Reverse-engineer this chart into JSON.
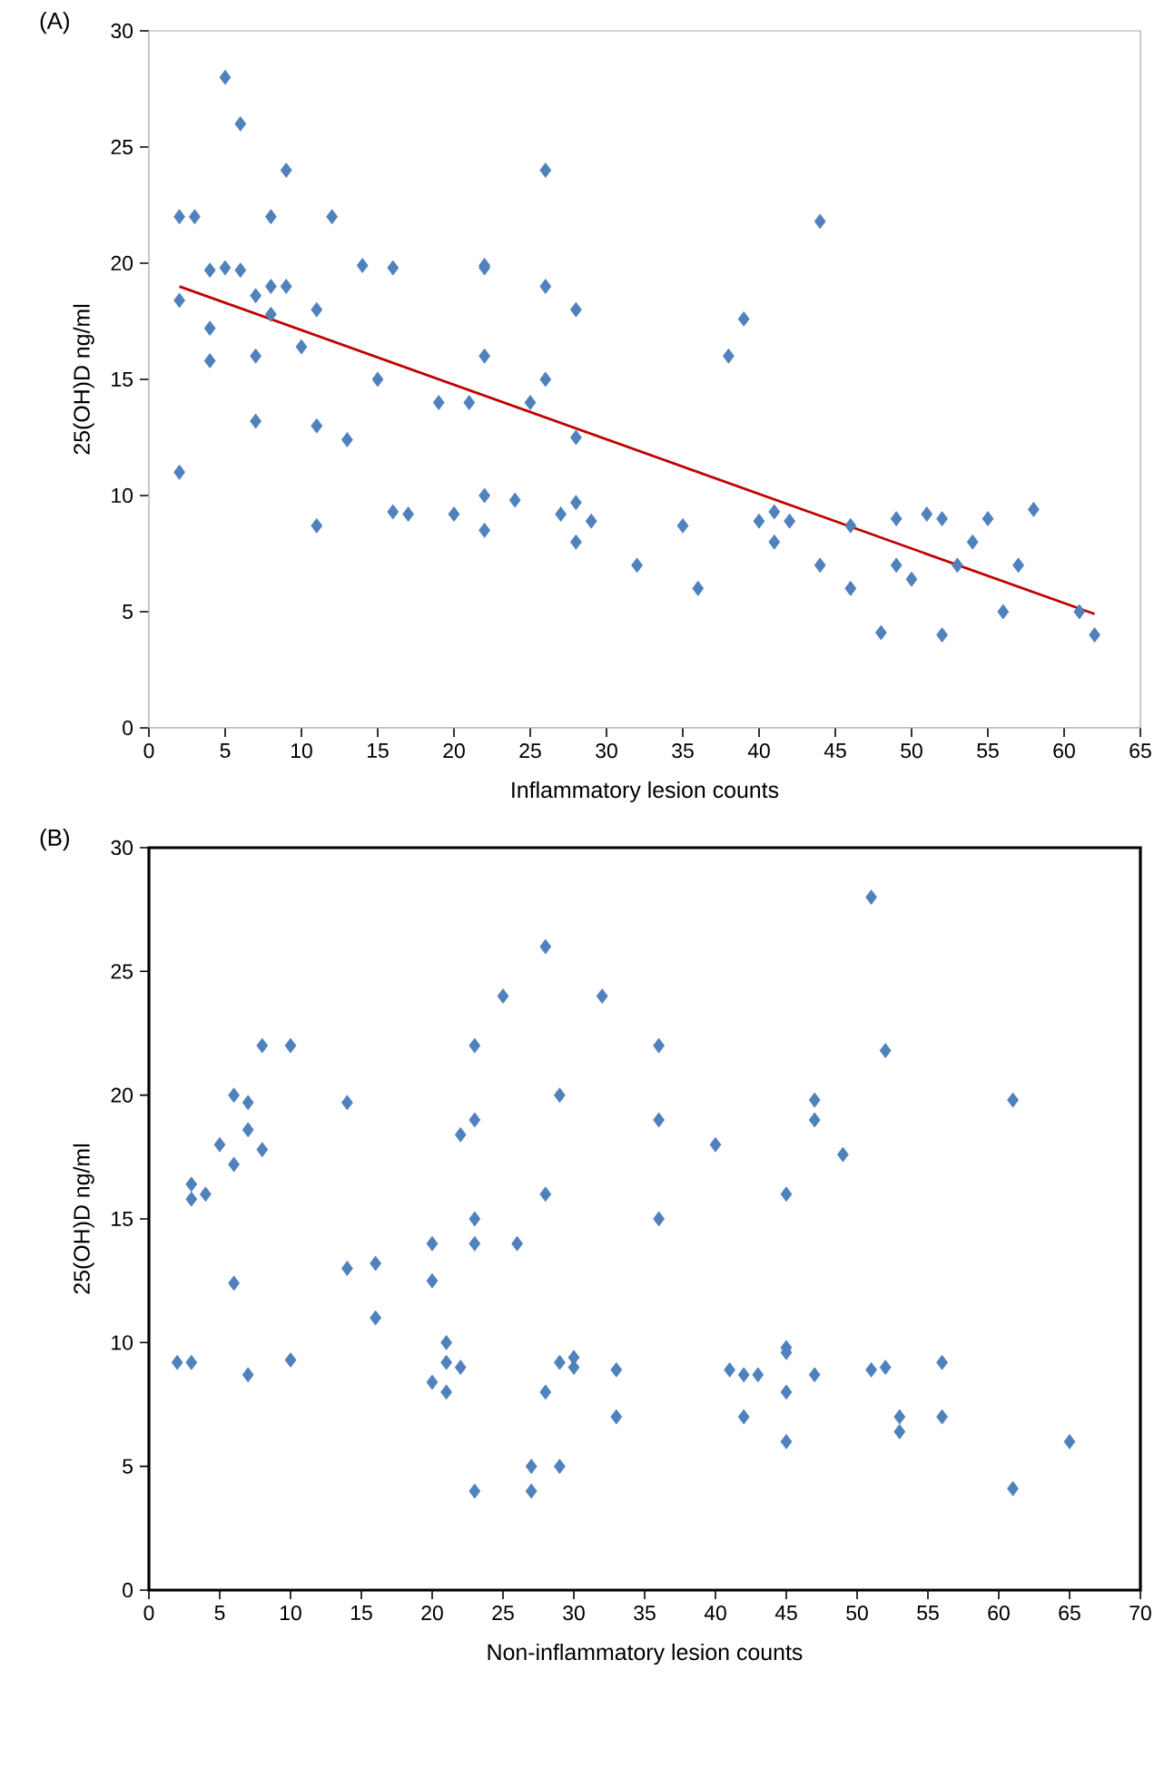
{
  "chart_data": [
    {
      "type": "scatter",
      "title": "(A)",
      "xlabel": "Inflammatory lesion counts",
      "ylabel": "25(OH)D ng/ml",
      "xlim": [
        0,
        65
      ],
      "ylim": [
        0,
        30
      ],
      "xticks": [
        0,
        5,
        10,
        15,
        20,
        25,
        30,
        35,
        40,
        45,
        50,
        55,
        60,
        65
      ],
      "yticks": [
        0,
        5,
        10,
        15,
        20,
        25,
        30
      ],
      "marker": "diamond",
      "series": [
        {
          "color": "#4f81bd",
          "x": [
            2,
            2,
            2,
            3,
            4,
            4,
            4,
            5,
            5,
            6,
            6,
            7,
            7,
            7,
            8,
            8,
            8,
            9,
            9,
            10,
            11,
            11,
            11,
            12,
            13,
            14,
            15,
            16,
            16,
            17,
            19,
            20,
            21,
            22,
            22,
            22,
            22,
            22,
            24,
            25,
            26,
            26,
            26,
            27,
            28,
            28,
            28,
            28,
            29,
            32,
            35,
            36,
            38,
            39,
            40,
            41,
            41,
            42,
            44,
            44,
            46,
            46,
            48,
            49,
            49,
            50,
            51,
            52,
            52,
            53,
            54,
            55,
            56,
            57,
            58,
            61,
            62
          ],
          "values": [
            22,
            18.4,
            11,
            22,
            19.7,
            17.2,
            15.8,
            28,
            19.8,
            26,
            19.7,
            18.6,
            16,
            13.2,
            22,
            19,
            17.8,
            24,
            19,
            16.4,
            18,
            13,
            8.7,
            22,
            12.4,
            19.9,
            15,
            19.8,
            9.3,
            9.2,
            14,
            9.2,
            14,
            19.9,
            19.8,
            16,
            10,
            8.5,
            9.8,
            14,
            24,
            19,
            15,
            9.2,
            18,
            12.5,
            9.7,
            8,
            8.9,
            7,
            8.7,
            6,
            16,
            17.6,
            8.9,
            9.3,
            8,
            8.9,
            21.8,
            7,
            8.7,
            6,
            4.1,
            9,
            7,
            6.4,
            9.2,
            9,
            4,
            7,
            8,
            9,
            5,
            7,
            9.4,
            5,
            4
          ]
        },
        {
          "type": "line",
          "color": "#c00000",
          "marker": "none",
          "x": [
            2,
            62
          ],
          "values": [
            19,
            4.9
          ]
        }
      ]
    },
    {
      "type": "scatter",
      "title": "(B)",
      "xlabel": "Non-inflammatory lesion counts",
      "ylabel": "25(OH)D ng/ml",
      "xlim": [
        0,
        70
      ],
      "ylim": [
        0,
        30
      ],
      "xticks": [
        0,
        5,
        10,
        15,
        20,
        25,
        30,
        35,
        40,
        45,
        50,
        55,
        60,
        65,
        70
      ],
      "yticks": [
        0,
        5,
        10,
        15,
        20,
        25,
        30
      ],
      "marker": "diamond",
      "series": [
        {
          "color": "#4f81bd",
          "x": [
            2,
            3,
            3,
            3,
            4,
            5,
            6,
            6,
            6,
            7,
            7,
            7,
            8,
            8,
            10,
            10,
            14,
            14,
            16,
            16,
            20,
            20,
            20,
            21,
            21,
            21,
            22,
            22,
            23,
            23,
            23,
            23,
            23,
            25,
            26,
            27,
            27,
            28,
            28,
            28,
            29,
            29,
            29,
            30,
            30,
            32,
            33,
            33,
            36,
            36,
            36,
            40,
            41,
            42,
            42,
            43,
            45,
            45,
            45,
            45,
            45,
            47,
            47,
            47,
            49,
            51,
            51,
            52,
            52,
            53,
            53,
            56,
            56,
            61,
            61,
            65
          ],
          "values": [
            9.2,
            9.2,
            16.4,
            15.8,
            16,
            18,
            20,
            17.2,
            12.4,
            19.7,
            18.6,
            8.7,
            17.8,
            22,
            22,
            9.3,
            19.7,
            13,
            13.2,
            11,
            14,
            12.5,
            8.4,
            10,
            9.2,
            8,
            18.4,
            9,
            22,
            19,
            15,
            14,
            4,
            24,
            14,
            5,
            4,
            26,
            16,
            8,
            20,
            9.2,
            5,
            9.4,
            9,
            24,
            8.9,
            7,
            22,
            19,
            15,
            18,
            8.9,
            8.7,
            7,
            8.7,
            16,
            9.8,
            9.6,
            8,
            6,
            19.8,
            19,
            8.7,
            17.6,
            28,
            8.9,
            21.8,
            9,
            7,
            6.4,
            9.2,
            7,
            19.8,
            4.1,
            6
          ]
        }
      ]
    }
  ]
}
